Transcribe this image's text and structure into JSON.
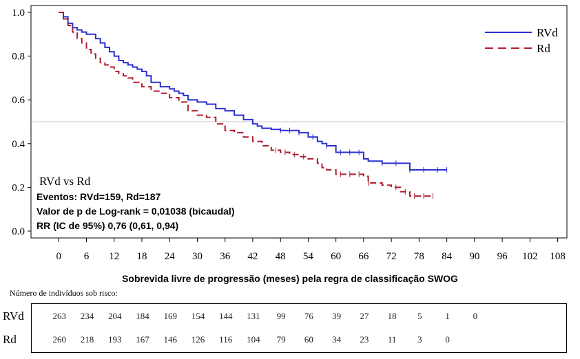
{
  "chart_data": {
    "type": "line",
    "xlabel": "Sobrevida livre de progressão (meses) pela regra de classificação SWOG",
    "ylabel": "",
    "xlim": [
      -6,
      110
    ],
    "ylim": [
      0,
      1.0
    ],
    "xticks": [
      0,
      6,
      12,
      18,
      24,
      30,
      36,
      42,
      48,
      54,
      60,
      66,
      72,
      78,
      84,
      90,
      96,
      102,
      108
    ],
    "yticks": [
      "0.0",
      "0.2",
      "0.4",
      "0.6",
      "0.8",
      "1.0"
    ],
    "reference_line": 0.5,
    "legend_position": "top-right",
    "series": [
      {
        "name": "RVd",
        "color": "#2a2fcf",
        "style": "solid",
        "x": [
          0,
          1,
          2,
          3,
          4,
          5,
          6,
          8,
          9,
          10,
          11,
          12,
          13,
          14,
          15,
          16,
          17,
          18,
          19,
          20,
          22,
          24,
          25,
          26,
          27,
          28,
          30,
          32,
          34,
          36,
          38,
          40,
          42,
          43,
          44,
          46,
          48,
          52,
          54,
          56,
          57,
          58,
          60,
          66,
          67,
          70,
          76,
          84
        ],
        "y": [
          1.0,
          0.98,
          0.95,
          0.93,
          0.92,
          0.91,
          0.9,
          0.88,
          0.86,
          0.84,
          0.82,
          0.8,
          0.78,
          0.77,
          0.76,
          0.75,
          0.74,
          0.73,
          0.71,
          0.68,
          0.66,
          0.65,
          0.64,
          0.63,
          0.62,
          0.6,
          0.59,
          0.58,
          0.56,
          0.55,
          0.53,
          0.51,
          0.49,
          0.48,
          0.47,
          0.465,
          0.46,
          0.45,
          0.43,
          0.41,
          0.4,
          0.39,
          0.36,
          0.33,
          0.32,
          0.31,
          0.28,
          0.28
        ],
        "censor_x": [
          70,
          73,
          76,
          79,
          82,
          84,
          48,
          50,
          52,
          55,
          58,
          61,
          63,
          65
        ]
      },
      {
        "name": "Rd",
        "color": "#b01c2e",
        "style": "dashed",
        "x": [
          0,
          1,
          2,
          3,
          4,
          5,
          6,
          7,
          8,
          9,
          10,
          11,
          12,
          13,
          14,
          15,
          16,
          18,
          20,
          22,
          24,
          26,
          28,
          30,
          32,
          34,
          36,
          38,
          40,
          42,
          44,
          46,
          48,
          50,
          52,
          54,
          56,
          57,
          58,
          60,
          66,
          67,
          70,
          72,
          74,
          76,
          78,
          81
        ],
        "y": [
          1.0,
          0.97,
          0.94,
          0.91,
          0.88,
          0.86,
          0.83,
          0.81,
          0.79,
          0.77,
          0.76,
          0.75,
          0.73,
          0.72,
          0.71,
          0.7,
          0.68,
          0.66,
          0.64,
          0.63,
          0.61,
          0.59,
          0.55,
          0.53,
          0.52,
          0.49,
          0.46,
          0.45,
          0.43,
          0.41,
          0.39,
          0.37,
          0.36,
          0.35,
          0.34,
          0.33,
          0.31,
          0.29,
          0.28,
          0.26,
          0.25,
          0.22,
          0.21,
          0.2,
          0.18,
          0.16,
          0.16,
          0.16
        ],
        "censor_x": [
          61,
          63,
          65,
          67,
          73,
          75,
          77,
          79,
          81,
          47,
          49,
          51,
          53
        ]
      }
    ],
    "annotation": {
      "heading": "RVd vs Rd",
      "lines": [
        "Eventos: RVd=159, Rd=187",
        "Valor de p de Log-rank = 0,01038 (bicaudal)",
        "RR (IC de 95%) 0,76 (0,61, 0,94)"
      ]
    }
  },
  "risk_table": {
    "caption": "Número de indivíduos sob risco:",
    "rows": [
      {
        "label": "RVd",
        "values": [
          263,
          234,
          204,
          184,
          169,
          154,
          144,
          131,
          99,
          76,
          39,
          27,
          18,
          5,
          1,
          0
        ]
      },
      {
        "label": "Rd",
        "values": [
          260,
          218,
          193,
          167,
          146,
          126,
          116,
          104,
          79,
          60,
          34,
          23,
          11,
          3,
          0
        ]
      }
    ]
  }
}
